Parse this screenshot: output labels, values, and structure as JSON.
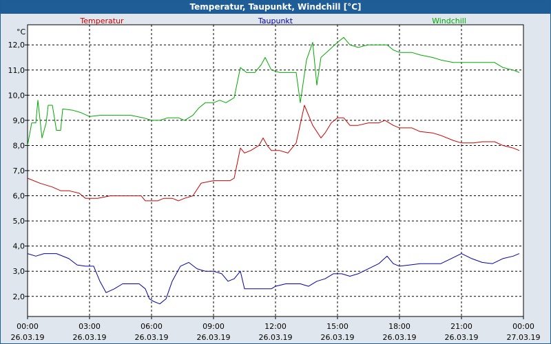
{
  "window": {
    "title": "Temperatur, Taupunkt, Windchill [°C]"
  },
  "chart_data": {
    "type": "line",
    "title": "Temperatur, Taupunkt, Windchill [°C]",
    "ylabel": "°C",
    "xlabel": "",
    "ylim": [
      1.2,
      12.8
    ],
    "xlim": [
      0,
      24
    ],
    "yticks": [
      2.0,
      3.0,
      4.0,
      5.0,
      6.0,
      7.0,
      8.0,
      9.0,
      10.0,
      11.0,
      12.0
    ],
    "ytick_labels": [
      "2,0",
      "3,0",
      "4,0",
      "5,0",
      "6,0",
      "7,0",
      "8,0",
      "9,0",
      "10,0",
      "11,0",
      "12,0"
    ],
    "xticks": [
      0,
      3,
      6,
      9,
      12,
      15,
      18,
      21,
      24
    ],
    "xtick_labels": [
      [
        "00:00",
        "26.03.19"
      ],
      [
        "03:00",
        "26.03.19"
      ],
      [
        "06:00",
        "26.03.19"
      ],
      [
        "09:00",
        "26.03.19"
      ],
      [
        "12:00",
        "26.03.19"
      ],
      [
        "15:00",
        "26.03.19"
      ],
      [
        "18:00",
        "26.03.19"
      ],
      [
        "21:00",
        "26.03.19"
      ],
      [
        "00:00",
        "27.03.19"
      ]
    ],
    "grid": true,
    "legend": "top",
    "series": [
      {
        "name": "Temperatur",
        "color": "#cc0000",
        "points": [
          [
            0.0,
            6.7
          ],
          [
            0.6,
            6.5
          ],
          [
            1.2,
            6.35
          ],
          [
            1.6,
            6.2
          ],
          [
            2.0,
            6.2
          ],
          [
            2.5,
            6.1
          ],
          [
            2.8,
            5.9
          ],
          [
            3.4,
            5.9
          ],
          [
            4.0,
            6.0
          ],
          [
            5.0,
            6.0
          ],
          [
            5.5,
            6.0
          ],
          [
            5.7,
            5.8
          ],
          [
            6.3,
            5.8
          ],
          [
            6.6,
            5.9
          ],
          [
            7.0,
            5.9
          ],
          [
            7.3,
            5.8
          ],
          [
            7.6,
            5.9
          ],
          [
            8.0,
            6.0
          ],
          [
            8.4,
            6.5
          ],
          [
            8.7,
            6.55
          ],
          [
            9.0,
            6.6
          ],
          [
            9.4,
            6.6
          ],
          [
            9.8,
            6.6
          ],
          [
            10.0,
            6.7
          ],
          [
            10.3,
            7.9
          ],
          [
            10.5,
            7.7
          ],
          [
            10.8,
            7.8
          ],
          [
            11.2,
            8.0
          ],
          [
            11.4,
            8.3
          ],
          [
            11.6,
            8.0
          ],
          [
            11.8,
            7.8
          ],
          [
            12.2,
            7.8
          ],
          [
            12.6,
            7.7
          ],
          [
            13.0,
            8.1
          ],
          [
            13.4,
            9.6
          ],
          [
            13.8,
            8.8
          ],
          [
            14.2,
            8.3
          ],
          [
            14.4,
            8.5
          ],
          [
            14.7,
            8.9
          ],
          [
            15.0,
            9.1
          ],
          [
            15.3,
            9.1
          ],
          [
            15.6,
            8.8
          ],
          [
            16.0,
            8.8
          ],
          [
            16.5,
            8.9
          ],
          [
            17.0,
            8.9
          ],
          [
            17.3,
            9.0
          ],
          [
            17.7,
            8.8
          ],
          [
            18.0,
            8.7
          ],
          [
            18.6,
            8.7
          ],
          [
            19.0,
            8.55
          ],
          [
            19.6,
            8.5
          ],
          [
            20.0,
            8.4
          ],
          [
            20.6,
            8.2
          ],
          [
            21.0,
            8.1
          ],
          [
            21.6,
            8.1
          ],
          [
            22.0,
            8.15
          ],
          [
            22.6,
            8.15
          ],
          [
            23.0,
            8.0
          ],
          [
            23.5,
            7.9
          ],
          [
            23.8,
            7.8
          ]
        ]
      },
      {
        "name": "Taupunkt",
        "color": "#0000aa",
        "points": [
          [
            0.0,
            3.7
          ],
          [
            0.4,
            3.6
          ],
          [
            0.8,
            3.7
          ],
          [
            1.4,
            3.7
          ],
          [
            2.0,
            3.5
          ],
          [
            2.4,
            3.25
          ],
          [
            2.8,
            3.2
          ],
          [
            3.2,
            3.2
          ],
          [
            3.5,
            2.6
          ],
          [
            3.8,
            2.15
          ],
          [
            4.2,
            2.3
          ],
          [
            4.6,
            2.5
          ],
          [
            5.0,
            2.5
          ],
          [
            5.4,
            2.5
          ],
          [
            5.7,
            2.3
          ],
          [
            5.9,
            1.9
          ],
          [
            6.1,
            1.8
          ],
          [
            6.4,
            1.7
          ],
          [
            6.7,
            1.9
          ],
          [
            7.0,
            2.6
          ],
          [
            7.4,
            3.2
          ],
          [
            7.8,
            3.35
          ],
          [
            8.2,
            3.1
          ],
          [
            8.6,
            3.0
          ],
          [
            9.0,
            3.0
          ],
          [
            9.4,
            2.9
          ],
          [
            9.7,
            2.6
          ],
          [
            10.0,
            2.7
          ],
          [
            10.3,
            3.0
          ],
          [
            10.5,
            2.3
          ],
          [
            10.8,
            2.3
          ],
          [
            11.2,
            2.3
          ],
          [
            11.5,
            2.3
          ],
          [
            11.8,
            2.3
          ],
          [
            12.0,
            2.4
          ],
          [
            12.5,
            2.5
          ],
          [
            12.8,
            2.5
          ],
          [
            13.2,
            2.5
          ],
          [
            13.6,
            2.4
          ],
          [
            14.0,
            2.6
          ],
          [
            14.4,
            2.7
          ],
          [
            14.8,
            2.9
          ],
          [
            15.2,
            2.9
          ],
          [
            15.6,
            2.8
          ],
          [
            16.0,
            2.9
          ],
          [
            16.5,
            3.1
          ],
          [
            17.0,
            3.3
          ],
          [
            17.4,
            3.6
          ],
          [
            17.7,
            3.3
          ],
          [
            18.0,
            3.2
          ],
          [
            18.5,
            3.25
          ],
          [
            19.0,
            3.3
          ],
          [
            19.5,
            3.3
          ],
          [
            20.0,
            3.3
          ],
          [
            20.5,
            3.5
          ],
          [
            21.0,
            3.7
          ],
          [
            21.5,
            3.5
          ],
          [
            22.0,
            3.35
          ],
          [
            22.5,
            3.3
          ],
          [
            23.0,
            3.5
          ],
          [
            23.5,
            3.6
          ],
          [
            23.8,
            3.7
          ]
        ]
      },
      {
        "name": "Windchill",
        "color": "#00aa00",
        "points": [
          [
            0.0,
            8.0
          ],
          [
            0.2,
            8.9
          ],
          [
            0.4,
            8.9
          ],
          [
            0.5,
            9.8
          ],
          [
            0.7,
            8.3
          ],
          [
            0.9,
            8.9
          ],
          [
            1.0,
            9.6
          ],
          [
            1.2,
            9.6
          ],
          [
            1.4,
            8.6
          ],
          [
            1.6,
            8.6
          ],
          [
            1.7,
            9.45
          ],
          [
            2.2,
            9.4
          ],
          [
            2.6,
            9.3
          ],
          [
            3.0,
            9.15
          ],
          [
            3.5,
            9.2
          ],
          [
            4.0,
            9.2
          ],
          [
            4.5,
            9.2
          ],
          [
            5.0,
            9.2
          ],
          [
            5.6,
            9.1
          ],
          [
            6.0,
            9.0
          ],
          [
            6.4,
            9.0
          ],
          [
            6.8,
            9.1
          ],
          [
            7.3,
            9.1
          ],
          [
            7.6,
            9.0
          ],
          [
            8.0,
            9.2
          ],
          [
            8.3,
            9.5
          ],
          [
            8.6,
            9.7
          ],
          [
            9.0,
            9.7
          ],
          [
            9.3,
            9.8
          ],
          [
            9.6,
            9.7
          ],
          [
            9.8,
            9.8
          ],
          [
            10.0,
            9.9
          ],
          [
            10.3,
            11.1
          ],
          [
            10.6,
            10.9
          ],
          [
            11.0,
            10.9
          ],
          [
            11.3,
            11.2
          ],
          [
            11.5,
            11.5
          ],
          [
            11.8,
            11.0
          ],
          [
            12.2,
            10.9
          ],
          [
            12.6,
            10.9
          ],
          [
            13.0,
            10.9
          ],
          [
            13.2,
            9.7
          ],
          [
            13.5,
            11.4
          ],
          [
            13.8,
            12.1
          ],
          [
            14.0,
            10.4
          ],
          [
            14.2,
            11.5
          ],
          [
            14.6,
            11.8
          ],
          [
            15.0,
            12.1
          ],
          [
            15.3,
            12.3
          ],
          [
            15.6,
            12.0
          ],
          [
            16.0,
            11.9
          ],
          [
            16.5,
            12.0
          ],
          [
            17.0,
            12.0
          ],
          [
            17.4,
            12.0
          ],
          [
            17.7,
            11.8
          ],
          [
            18.0,
            11.7
          ],
          [
            18.6,
            11.7
          ],
          [
            19.0,
            11.6
          ],
          [
            19.6,
            11.5
          ],
          [
            20.0,
            11.4
          ],
          [
            20.6,
            11.3
          ],
          [
            21.0,
            11.3
          ],
          [
            21.6,
            11.3
          ],
          [
            22.0,
            11.3
          ],
          [
            22.6,
            11.3
          ],
          [
            23.0,
            11.1
          ],
          [
            23.5,
            11.0
          ],
          [
            23.8,
            10.9
          ]
        ]
      }
    ]
  }
}
